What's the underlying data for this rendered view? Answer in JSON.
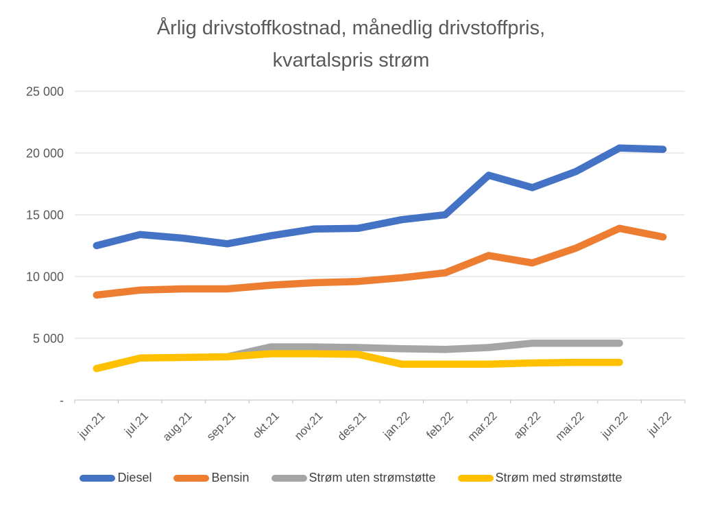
{
  "title": {
    "line1": "Årlig drivstoffkostnad, månedlig drivstoffpris,",
    "line2": "kvartalspris strøm"
  },
  "chart_data": {
    "type": "line",
    "title": "Årlig drivstoffkostnad, månedlig drivstoffpris, kvartalspris strøm",
    "categories": [
      "jun.21",
      "jul.21",
      "aug.21",
      "sep.21",
      "okt.21",
      "nov.21",
      "des.21",
      "jan.22",
      "feb.22",
      "mar.22",
      "apr.22",
      "mai.22",
      "jun.22",
      "jul.22"
    ],
    "series": [
      {
        "name": "Diesel",
        "color": "#4472C4",
        "values": [
          12500,
          13400,
          13100,
          12650,
          13300,
          13850,
          13900,
          14600,
          15000,
          18200,
          17200,
          18500,
          20400,
          20300
        ]
      },
      {
        "name": "Bensin",
        "color": "#ED7D31",
        "values": [
          8500,
          8900,
          9000,
          9000,
          9300,
          9500,
          9600,
          9900,
          10300,
          11700,
          11100,
          12300,
          13900,
          13200
        ]
      },
      {
        "name": "Strøm uten strømstøtte",
        "color": "#A5A5A5",
        "values": [
          null,
          null,
          null,
          3500,
          4300,
          4300,
          4250,
          4150,
          4100,
          4250,
          4600,
          4600,
          4600,
          null
        ]
      },
      {
        "name": "Strøm med strømstøtte",
        "color": "#FFC000",
        "values": [
          2550,
          3400,
          3450,
          3500,
          3750,
          3750,
          3700,
          2900,
          2900,
          2900,
          3000,
          3050,
          3050,
          null
        ]
      }
    ],
    "ylim": [
      0,
      25000
    ],
    "yticks": [
      {
        "value": 0,
        "label": "-"
      },
      {
        "value": 5000,
        "label": "5 000"
      },
      {
        "value": 10000,
        "label": "10 000"
      },
      {
        "value": 15000,
        "label": "15 000"
      },
      {
        "value": 20000,
        "label": "20 000"
      },
      {
        "value": 25000,
        "label": "25 000"
      }
    ],
    "grid": true,
    "legend_position": "bottom",
    "xlabel": "",
    "ylabel": ""
  },
  "colors": {
    "background": "#FFFFFF",
    "grid": "#D9D9D9",
    "axis": "#BFBFBF",
    "axis_text": "#595959",
    "title_text": "#595959",
    "legend_text": "#404040"
  }
}
